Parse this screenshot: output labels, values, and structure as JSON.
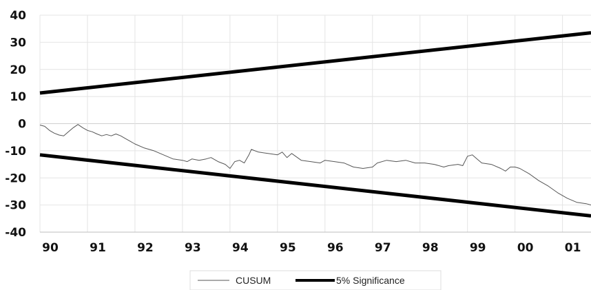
{
  "chart_data": {
    "type": "line",
    "title": "",
    "xlabel": "",
    "ylabel": "",
    "ylim": [
      -40,
      40
    ],
    "yticks": [
      40,
      30,
      20,
      10,
      0,
      -10,
      -20,
      -30,
      -40
    ],
    "xlim": [
      1990,
      2001.6
    ],
    "xticks": [
      {
        "x": 1990,
        "label": "90"
      },
      {
        "x": 1991,
        "label": "91"
      },
      {
        "x": 1992,
        "label": "92"
      },
      {
        "x": 1993,
        "label": "93"
      },
      {
        "x": 1994,
        "label": "94"
      },
      {
        "x": 1995,
        "label": "95"
      },
      {
        "x": 1996,
        "label": "96"
      },
      {
        "x": 1997,
        "label": "97"
      },
      {
        "x": 1998,
        "label": "98"
      },
      {
        "x": 1999,
        "label": "99"
      },
      {
        "x": 2000,
        "label": "00"
      },
      {
        "x": 2001,
        "label": "01"
      }
    ],
    "grid": true,
    "legend_position": "bottom",
    "series": [
      {
        "name": "CUSUM",
        "style": "thin",
        "color": "#555555",
        "x": [
          1990.0,
          1990.1,
          1990.2,
          1990.3,
          1990.4,
          1990.5,
          1990.6,
          1990.7,
          1990.8,
          1990.9,
          1991.0,
          1991.1,
          1991.2,
          1991.3,
          1991.4,
          1991.5,
          1991.6,
          1991.7,
          1991.8,
          1991.9,
          1992.0,
          1992.2,
          1992.4,
          1992.6,
          1992.8,
          1993.0,
          1993.1,
          1993.2,
          1993.35,
          1993.5,
          1993.6,
          1993.75,
          1993.9,
          1994.0,
          1994.1,
          1994.2,
          1994.3,
          1994.4,
          1994.45,
          1994.6,
          1994.8,
          1995.0,
          1995.1,
          1995.2,
          1995.3,
          1995.5,
          1995.7,
          1995.9,
          1996.0,
          1996.2,
          1996.4,
          1996.6,
          1996.8,
          1997.0,
          1997.1,
          1997.3,
          1997.5,
          1997.7,
          1997.9,
          1998.1,
          1998.3,
          1998.5,
          1998.6,
          1998.8,
          1998.9,
          1999.0,
          1999.1,
          1999.2,
          1999.3,
          1999.5,
          1999.7,
          1999.8,
          1999.9,
          2000.0,
          2000.1,
          2000.3,
          2000.5,
          2000.7,
          2000.9,
          2001.1,
          2001.3,
          2001.5,
          2001.6
        ],
        "values": [
          -0.5,
          -1.0,
          -2.5,
          -3.5,
          -4.2,
          -4.5,
          -3.0,
          -1.5,
          -0.3,
          -1.5,
          -2.5,
          -3.0,
          -3.8,
          -4.5,
          -4.0,
          -4.5,
          -3.8,
          -4.5,
          -5.5,
          -6.5,
          -7.5,
          -9.0,
          -10.0,
          -11.5,
          -13.0,
          -13.5,
          -14.0,
          -13.0,
          -13.5,
          -13.0,
          -12.5,
          -14.0,
          -15.0,
          -16.5,
          -14.0,
          -13.5,
          -14.5,
          -11.5,
          -9.5,
          -10.5,
          -11.0,
          -11.5,
          -10.5,
          -12.5,
          -11.0,
          -13.5,
          -14.0,
          -14.5,
          -13.5,
          -14.0,
          -14.5,
          -16.0,
          -16.5,
          -16.0,
          -14.5,
          -13.5,
          -14.0,
          -13.5,
          -14.5,
          -14.5,
          -15.0,
          -16.0,
          -15.5,
          -15.0,
          -15.5,
          -12.0,
          -11.5,
          -13.0,
          -14.5,
          -15.0,
          -16.5,
          -17.5,
          -16.0,
          -16.0,
          -16.5,
          -18.5,
          -21.0,
          -23.0,
          -25.5,
          -27.5,
          -29.0,
          -29.5,
          -30.0
        ]
      },
      {
        "name": "5% Significance",
        "style": "thick",
        "color": "#000000",
        "x": [
          1990.0,
          2001.6
        ],
        "values": [
          11.3,
          33.5
        ]
      },
      {
        "name": "",
        "legend": false,
        "style": "thick",
        "color": "#000000",
        "x": [
          1990.0,
          2001.6
        ],
        "values": [
          -11.5,
          -34.0
        ]
      }
    ]
  }
}
